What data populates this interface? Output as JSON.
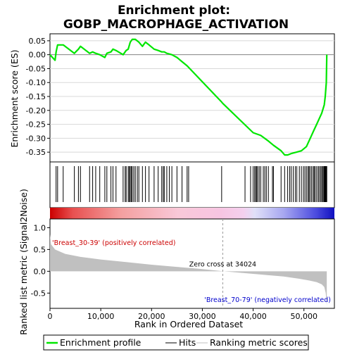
{
  "chart_data": {
    "type": "line",
    "title_line1": "Enrichment plot:",
    "title_line2": "GOBP_MACROPHAGE_ACTIVATION",
    "top_panel": {
      "ylabel": "Enrichment score (ES)",
      "ylim": [
        -0.385,
        0.075
      ],
      "yticks": [
        0.05,
        0.0,
        -0.05,
        -0.1,
        -0.15,
        -0.2,
        -0.25,
        -0.3,
        -0.35
      ],
      "ytick_labels": [
        "0.05",
        "0.00",
        "-0.05",
        "-0.10",
        "-0.15",
        "-0.20",
        "-0.25",
        "-0.30",
        "-0.35"
      ],
      "line_color": "#00e600",
      "series": {
        "name": "Enrichment profile",
        "x": [
          0,
          1000,
          1200,
          1500,
          2600,
          4800,
          5600,
          6000,
          7800,
          8400,
          9000,
          9800,
          10800,
          11200,
          12000,
          12400,
          13000,
          14400,
          15000,
          15400,
          15800,
          16200,
          16800,
          17500,
          18200,
          18800,
          19500,
          20500,
          21300,
          22000,
          22500,
          23000,
          24000,
          25000,
          26000,
          27000,
          33800,
          34024,
          40000,
          41500,
          43000,
          44000,
          45500,
          46200,
          46800,
          47500,
          48500,
          49500,
          50500,
          51500,
          52000,
          52500,
          53000,
          53500,
          54000,
          54200,
          54400,
          54500
        ],
        "y": [
          0.0,
          -0.02,
          0.01,
          0.035,
          0.035,
          0.005,
          0.02,
          0.03,
          0.005,
          0.01,
          0.005,
          0.0,
          -0.01,
          0.005,
          0.01,
          0.02,
          0.015,
          0.0,
          0.015,
          0.02,
          0.045,
          0.055,
          0.055,
          0.045,
          0.03,
          0.045,
          0.035,
          0.02,
          0.015,
          0.01,
          0.01,
          0.005,
          0.0,
          -0.01,
          -0.025,
          -0.04,
          -0.17,
          -0.175,
          -0.28,
          -0.29,
          -0.31,
          -0.325,
          -0.345,
          -0.36,
          -0.36,
          -0.355,
          -0.35,
          -0.345,
          -0.33,
          -0.29,
          -0.27,
          -0.25,
          -0.23,
          -0.21,
          -0.18,
          -0.15,
          -0.1,
          0.0
        ]
      }
    },
    "hits": [
      1200,
      1500,
      2600,
      4800,
      5600,
      6000,
      7800,
      8400,
      9000,
      9800,
      10800,
      11200,
      12000,
      12400,
      13000,
      14400,
      14800,
      15000,
      15400,
      15600,
      15800,
      16000,
      16200,
      16500,
      16800,
      17200,
      17500,
      18200,
      18800,
      19500,
      20500,
      21300,
      22000,
      22300,
      22500,
      23000,
      23500,
      24000,
      25000,
      26000,
      27000,
      27300,
      33800,
      38400,
      39500,
      40000,
      40300,
      40500,
      40700,
      40900,
      41200,
      41500,
      42000,
      42300,
      42600,
      43000,
      43800,
      44000,
      45500,
      46200,
      46800,
      47200,
      47500,
      47900,
      48300,
      48600,
      49100,
      49500,
      49900,
      50200,
      50500,
      50800,
      51000,
      51200,
      51500,
      51800,
      52000,
      52200,
      52500,
      52800,
      53000,
      53300,
      53500,
      53700,
      53900,
      54000,
      54100,
      54200,
      54300,
      54400,
      54500
    ],
    "bottom_panel": {
      "ylabel_line1": "Ranked list metric (Signal2Noise)",
      "ylim": [
        -0.85,
        1.2
      ],
      "yticks": [
        1.0,
        0.5,
        0.0,
        -0.5
      ],
      "ytick_labels": [
        "1.0",
        "0.5",
        "0.0",
        "-0.5"
      ],
      "metric_x": [
        0,
        200,
        1000,
        3000,
        6000,
        10000,
        15000,
        20000,
        25000,
        30000,
        34024,
        38000,
        42000,
        46000,
        49000,
        51000,
        52500,
        53500,
        54000,
        54300,
        54500
      ],
      "metric_y": [
        0.85,
        0.62,
        0.5,
        0.4,
        0.33,
        0.27,
        0.21,
        0.15,
        0.1,
        0.05,
        0.0,
        -0.04,
        -0.08,
        -0.12,
        -0.17,
        -0.21,
        -0.25,
        -0.3,
        -0.36,
        -0.5,
        -0.8
      ],
      "fill_color": "#c0c0c0"
    },
    "xaxis": {
      "xlabel": "Rank in Ordered Dataset",
      "xlim": [
        0,
        56000
      ],
      "xticks": [
        0,
        10000,
        20000,
        30000,
        40000,
        50000
      ],
      "xtick_labels": [
        "0",
        "10,000",
        "20,000",
        "30,000",
        "40,000",
        "50,000"
      ]
    },
    "zero_cross": 34024,
    "zero_cross_label": "Zero cross at 34024",
    "positive_label": "'Breast_30-39' (positively correlated)",
    "negative_label": "'Breast_70-79' (negatively correlated)",
    "positive_color": "#cc0000",
    "negative_color": "#0000cc",
    "legend": {
      "items": [
        "Enrichment profile",
        "Hits",
        "Ranking metric scores"
      ]
    }
  }
}
